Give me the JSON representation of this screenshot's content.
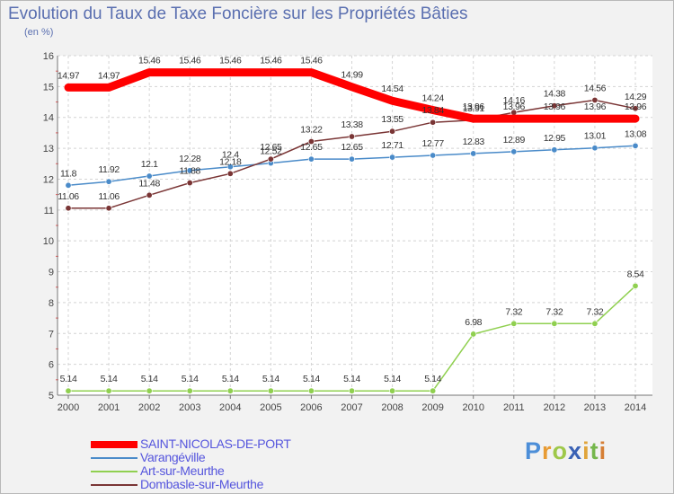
{
  "header": {
    "title": "Evolution du Taux de Taxe Foncière sur les Propriétés Bâties",
    "unit": "(en %)"
  },
  "logo": {
    "letters": [
      "P",
      "r",
      "o",
      "x",
      "i",
      "t",
      "i"
    ],
    "colors": [
      "#4c8ed8",
      "#e89b33",
      "#9ec84a",
      "#3a62b5",
      "#e0a43a",
      "#75b74c",
      "#d67f35"
    ]
  },
  "legend": [
    {
      "name": "SAINT-NICOLAS-DE-PORT"
    },
    {
      "name": "Varangéville"
    },
    {
      "name": "Art-sur-Meurthe"
    },
    {
      "name": "Dombasle-sur-Meurthe"
    }
  ],
  "chart_data": {
    "type": "line",
    "title": "Evolution du Taux de Taxe Foncière sur les Propriétés Bâties",
    "ylabel": "(en %)",
    "xlabel": "",
    "x": [
      "2000",
      "2001",
      "2002",
      "2003",
      "2004",
      "2005",
      "2006",
      "2007",
      "2008",
      "2009",
      "2010",
      "2011",
      "2012",
      "2013",
      "2014"
    ],
    "ylim": [
      5,
      16
    ],
    "yticks": [
      "5",
      "6",
      "7",
      "8",
      "9",
      "10",
      "11",
      "12",
      "13",
      "14",
      "15",
      "16"
    ],
    "grid": true,
    "legend_position": "bottom-left",
    "series": [
      {
        "name": "SAINT-NICOLAS-DE-PORT",
        "color": "#ff0000",
        "values": [
          14.97,
          14.97,
          15.46,
          15.46,
          15.46,
          15.46,
          15.46,
          14.99,
          14.54,
          14.24,
          13.96,
          13.96,
          13.96,
          13.96,
          13.96
        ],
        "labels": [
          "14.97",
          "14.97",
          "15.46",
          "15.46",
          "15.46",
          "15.46",
          "15.46",
          "14.99",
          "14.54",
          "14.24",
          "13.96",
          "13.96",
          "13.96",
          "13.96",
          "13.96"
        ]
      },
      {
        "name": "Varangéville",
        "color": "#4a8bc9",
        "values": [
          11.8,
          11.92,
          12.1,
          12.28,
          12.4,
          12.52,
          12.65,
          12.65,
          12.71,
          12.77,
          12.83,
          12.89,
          12.95,
          13.01,
          13.08
        ],
        "labels": [
          "11.8",
          "11.92",
          "12.1",
          "12.28",
          "12.4",
          "12.52",
          "12.65",
          "12.65",
          "12.71",
          "12.77",
          "12.83",
          "12.89",
          "12.95",
          "13.01",
          "13.08"
        ]
      },
      {
        "name": "Art-sur-Meurthe",
        "color": "#90d050",
        "values": [
          5.14,
          5.14,
          5.14,
          5.14,
          5.14,
          5.14,
          5.14,
          5.14,
          5.14,
          5.14,
          6.98,
          7.32,
          7.32,
          7.32,
          8.54
        ],
        "labels": [
          "5.14",
          "5.14",
          "5.14",
          "5.14",
          "5.14",
          "5.14",
          "5.14",
          "5.14",
          "5.14",
          "5.14",
          "6.98",
          "7.32",
          "7.32",
          "7.32",
          "8.54"
        ]
      },
      {
        "name": "Dombasle-sur-Meurthe",
        "color": "#7a3535",
        "values": [
          11.06,
          11.06,
          11.48,
          11.88,
          12.18,
          12.65,
          13.22,
          13.38,
          13.55,
          13.84,
          13.91,
          14.16,
          14.38,
          14.56,
          14.29
        ],
        "labels": [
          "11.06",
          "11.06",
          "11.48",
          "11.88",
          "12.18",
          "12.65",
          "13.22",
          "13.38",
          "13.55",
          "13.84",
          "13.91",
          "14.16",
          "14.38",
          "14.56",
          "14.29"
        ]
      }
    ]
  }
}
